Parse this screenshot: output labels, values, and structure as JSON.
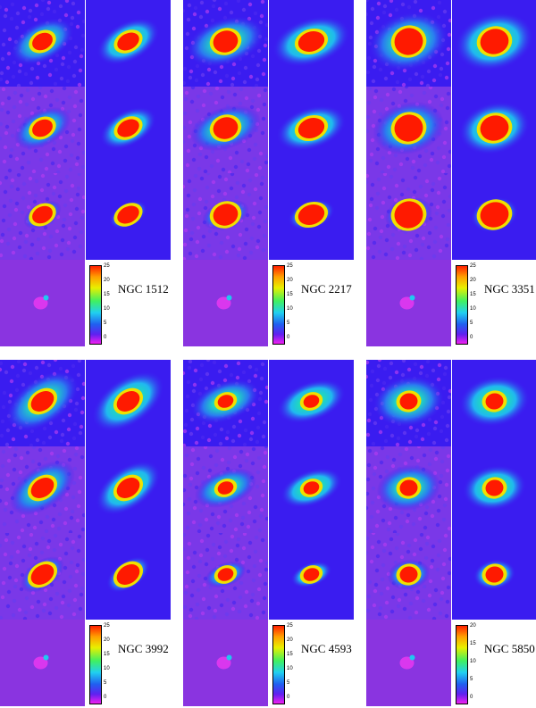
{
  "galaxies": [
    {
      "name": "NGC 1512",
      "colorbar_ticks": [
        "25",
        "20",
        "15",
        "10",
        "5",
        "0"
      ]
    },
    {
      "name": "NGC 2217",
      "colorbar_ticks": [
        "25",
        "20",
        "15",
        "10",
        "5",
        "0"
      ]
    },
    {
      "name": "NGC 3351",
      "colorbar_ticks": [
        "25",
        "20",
        "15",
        "10",
        "5",
        "0"
      ]
    },
    {
      "name": "NGC 3992",
      "colorbar_ticks": [
        "25",
        "20",
        "15",
        "10",
        "5",
        "0"
      ]
    },
    {
      "name": "NGC 4593",
      "colorbar_ticks": [
        "25",
        "20",
        "15",
        "10",
        "5",
        "0"
      ]
    },
    {
      "name": "NGC 5850",
      "colorbar_ticks": [
        "20",
        "15",
        "10",
        "5",
        "0"
      ]
    }
  ],
  "colors": {
    "background_blue": "#3a1cf0",
    "residual_purple": "#8a2be2",
    "core_red": "#ff1a00",
    "halo_green": "#28e070",
    "halo_cyan": "#20c8f0"
  }
}
